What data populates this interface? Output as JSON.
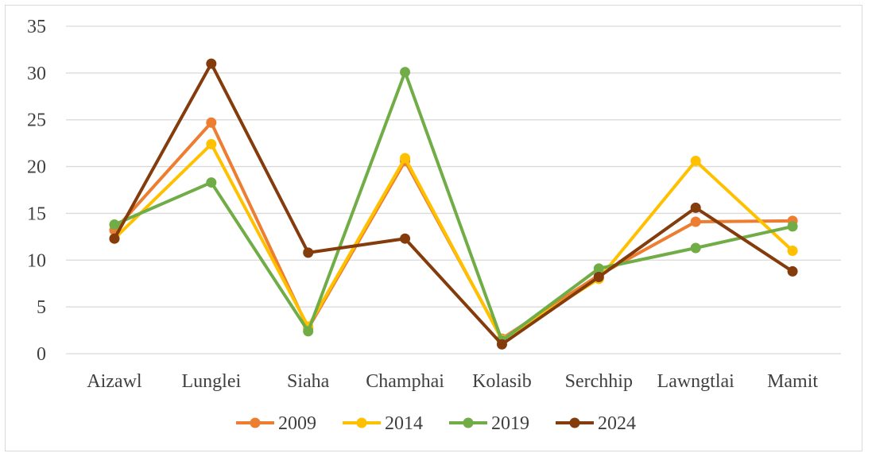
{
  "chart_data": {
    "type": "line",
    "title": "",
    "xlabel": "",
    "ylabel": "",
    "categories": [
      "Aizawl",
      "Lunglei",
      "Siaha",
      "Champhai",
      "Kolasib",
      "Serchhip",
      "Lawngtlai",
      "Mamit"
    ],
    "ylim": [
      0,
      35
    ],
    "yticks": [
      "0",
      "5",
      "10",
      "15",
      "20",
      "25",
      "30",
      "35"
    ],
    "grid": true,
    "legend_position": "bottom",
    "series": [
      {
        "name": "2009",
        "color": "#ed7d31",
        "values": [
          13.2,
          24.7,
          2.7,
          20.6,
          1.6,
          8.4,
          14.1,
          14.2
        ]
      },
      {
        "name": "2014",
        "color": "#ffc000",
        "values": [
          12.3,
          22.4,
          2.9,
          20.9,
          1.5,
          8.0,
          20.6,
          11.0
        ]
      },
      {
        "name": "2019",
        "color": "#70ad47",
        "values": [
          13.8,
          18.3,
          2.4,
          30.1,
          1.4,
          9.1,
          11.3,
          13.6
        ]
      },
      {
        "name": "2024",
        "color": "#843c0c",
        "values": [
          12.3,
          31.0,
          10.8,
          12.3,
          1.0,
          8.2,
          15.6,
          8.8
        ]
      }
    ]
  }
}
